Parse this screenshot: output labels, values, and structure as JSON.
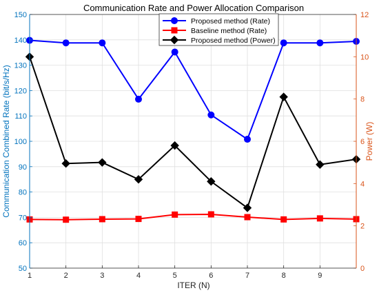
{
  "chart_data": {
    "type": "line",
    "title": "Communication Rate and Power Allocation Comparison",
    "xlabel": "ITER (N)",
    "ylabel_left": "Communication Combined Rate (bit/s/Hz)",
    "ylabel_right": "Power (W)",
    "x": [
      1,
      2,
      3,
      4,
      5,
      6,
      7,
      8,
      9,
      10
    ],
    "xticks": [
      "1",
      "2",
      "3",
      "4",
      "5",
      "6",
      "7",
      "8",
      "9"
    ],
    "xlim": [
      1,
      10
    ],
    "ylim_left": [
      50,
      150
    ],
    "yticks_left": [
      "50",
      "60",
      "70",
      "80",
      "90",
      "100",
      "110",
      "120",
      "130",
      "140",
      "150"
    ],
    "ylim_right": [
      0,
      12
    ],
    "yticks_right": [
      "0",
      "2",
      "4",
      "6",
      "8",
      "10",
      "12"
    ],
    "grid": true,
    "legend_position": "top-center",
    "colors": {
      "left_axis": "#0072BD",
      "right_axis": "#D95319",
      "rate": "#0000FF",
      "baseline": "#FF0000",
      "power": "#000000",
      "grid": "#dfdfdf"
    },
    "series": [
      {
        "name": "Proposed method (Rate)",
        "axis": "left",
        "marker": "circle",
        "color": "#0000FF",
        "values": [
          139.8,
          138.8,
          138.8,
          116.6,
          135.2,
          110.4,
          100.8,
          138.8,
          138.8,
          139.4
        ]
      },
      {
        "name": "Baseline method (Rate)",
        "axis": "left",
        "marker": "square",
        "color": "#FF0000",
        "values": [
          69.2,
          69.1,
          69.3,
          69.4,
          71.1,
          71.2,
          70.1,
          69.2,
          69.6,
          69.3
        ]
      },
      {
        "name": "Proposed method (Power)",
        "axis": "right",
        "marker": "diamond",
        "color": "#000000",
        "values": [
          10.0,
          4.95,
          5.0,
          4.2,
          5.8,
          4.1,
          2.85,
          8.1,
          4.9,
          5.15
        ]
      }
    ]
  }
}
